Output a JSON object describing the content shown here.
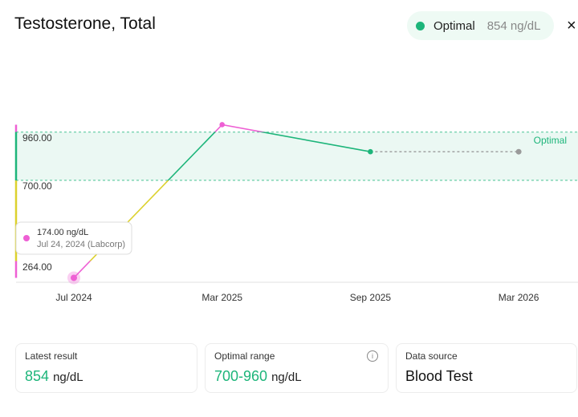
{
  "header": {
    "title": "Testosterone, Total",
    "status": "Optimal",
    "status_value": "854 ng/dL",
    "close": "×"
  },
  "chart_data": {
    "type": "line",
    "categories": [
      "Jul 2024",
      "Mar 2025",
      "Sep 2025",
      "Mar 2026"
    ],
    "values": [
      174,
      1000,
      854,
      null
    ],
    "forecast": [
      null,
      null,
      854,
      854
    ],
    "forecast_color": "#9a9a9a",
    "band": {
      "label": "Optimal",
      "range": [
        700,
        960
      ],
      "color": "#1db57a"
    },
    "zone_colors": {
      "low": "#ee5fd4",
      "mid": "#dcd12e",
      "optimal": "#1db57a"
    },
    "ylim": [
      150,
      1110
    ],
    "yticks": [
      {
        "value": 264,
        "label": "264.00"
      },
      {
        "value": 700,
        "label": "700.00"
      },
      {
        "value": 960,
        "label": "960.00"
      }
    ],
    "tooltip": {
      "value": "174.00 ng/dL",
      "detail": "Jul 24, 2024 (Labcorp)"
    }
  },
  "cards": [
    {
      "label": "Latest result",
      "value": "854",
      "unit": "ng/dL"
    },
    {
      "label": "Optimal range",
      "value": "700-960",
      "unit": "ng/dL"
    },
    {
      "label": "Data source",
      "value": "Blood Test"
    }
  ]
}
